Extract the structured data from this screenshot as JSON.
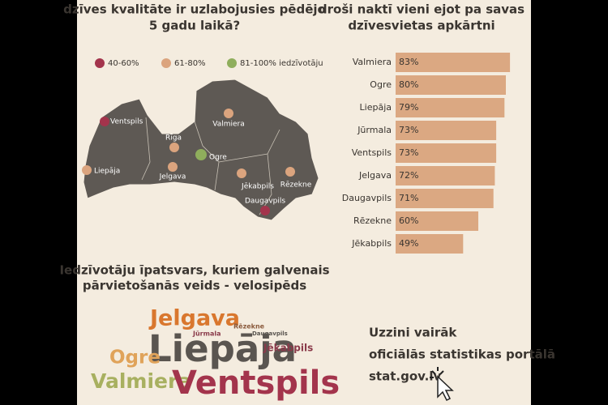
{
  "map": {
    "title": [
      "dzīves kvalitāte ir uzlabojusies pēdējo",
      "5 gadu laikā?"
    ],
    "legend": [
      {
        "label": "40-60%",
        "color": "#a3344c"
      },
      {
        "label": "61-80%",
        "color": "#dba47e"
      },
      {
        "label": "81-100% iedzīvotāju",
        "color": "#8fae5c"
      }
    ],
    "cities": [
      {
        "name": "Ventspils",
        "color": "#a3344c"
      },
      {
        "name": "Rīga",
        "color": "#dba47e"
      },
      {
        "name": "Valmiera",
        "color": "#dba47e"
      },
      {
        "name": "Ogre",
        "color": "#8fae5c"
      },
      {
        "name": "Liepāja",
        "color": "#dba47e"
      },
      {
        "name": "Jelgava",
        "color": "#dba47e"
      },
      {
        "name": "Jēkabpils",
        "color": "#dba47e"
      },
      {
        "name": "Rēzekne",
        "color": "#dba47e"
      },
      {
        "name": "Daugavpils",
        "color": "#a3344c"
      }
    ]
  },
  "chart_data": {
    "type": "bar",
    "orientation": "horizontal",
    "title": [
      "droši naktī vieni ejot pa savas",
      "dzīvesvietas apkārtni"
    ],
    "categories": [
      "Valmiera",
      "Ogre",
      "Liepāja",
      "Jūrmala",
      "Ventspils",
      "Jelgava",
      "Daugavpils",
      "Rēzekne",
      "Jēkabpils"
    ],
    "values": [
      83,
      80,
      79,
      73,
      73,
      72,
      71,
      60,
      49
    ],
    "value_labels": [
      "83%",
      "80%",
      "79%",
      "73%",
      "73%",
      "72%",
      "71%",
      "60%",
      "49%"
    ],
    "color": "#dba882"
  },
  "word_cloud": {
    "title": [
      "Iedzīvotāju īpatsvars, kuriem galvenais",
      "pārvietošanās veids - velosipēds"
    ],
    "words": [
      {
        "text": "Jelgava",
        "color": "#d9772e"
      },
      {
        "text": "Rēzekne",
        "color": "#8a5a3c"
      },
      {
        "text": "Jūrmala",
        "color": "#8a3a4a"
      },
      {
        "text": "Daugavpils",
        "color": "#5a5550"
      },
      {
        "text": "Liepāja",
        "color": "#5a5550"
      },
      {
        "text": "Ogre",
        "color": "#e0a35a"
      },
      {
        "text": "Jēkabpils",
        "color": "#8a3a4a"
      },
      {
        "text": "Valmiera",
        "color": "#a8b060"
      },
      {
        "text": "Ventspils",
        "color": "#a3344c"
      }
    ]
  },
  "footer": {
    "lines": [
      "Uzzini vairāk",
      "oficiālās statistikas portālā",
      "stat.gov.lv"
    ]
  }
}
